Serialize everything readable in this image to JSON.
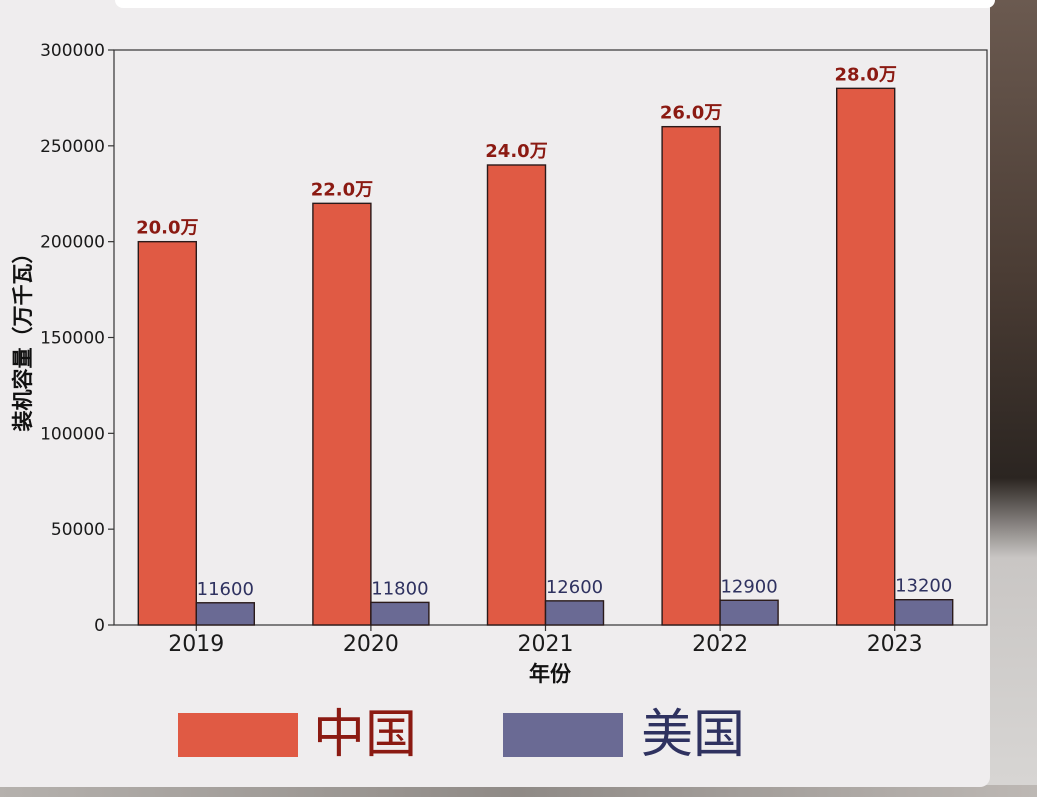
{
  "chart_data": {
    "type": "bar",
    "xlabel": "年份",
    "ylabel": "装机容量（万千瓦）",
    "categories": [
      "2019",
      "2020",
      "2021",
      "2022",
      "2023"
    ],
    "ylim": [
      0,
      300000
    ],
    "yticks": [
      0,
      50000,
      100000,
      150000,
      200000,
      250000,
      300000
    ],
    "grid": false,
    "legend_position": "bottom",
    "series": [
      {
        "name": "中国",
        "values": [
          200000,
          220000,
          240000,
          260000,
          280000
        ],
        "data_labels": [
          "20.0万",
          "22.0万",
          "24.0万",
          "26.0万",
          "28.0万"
        ],
        "color": "#e05a44",
        "label_color": "#8b1a12"
      },
      {
        "name": "美国",
        "values": [
          11600,
          11800,
          12600,
          12900,
          13200
        ],
        "data_labels": [
          "11600",
          "11800",
          "12600",
          "12900",
          "13200"
        ],
        "color": "#6a6a94",
        "label_color": "#2f3260"
      }
    ]
  },
  "legend": {
    "items": [
      {
        "label": "中国",
        "color": "#e05a44",
        "text_color": "#8b1a12"
      },
      {
        "label": "美国",
        "color": "#6a6a94",
        "text_color": "#2f3260"
      }
    ]
  }
}
